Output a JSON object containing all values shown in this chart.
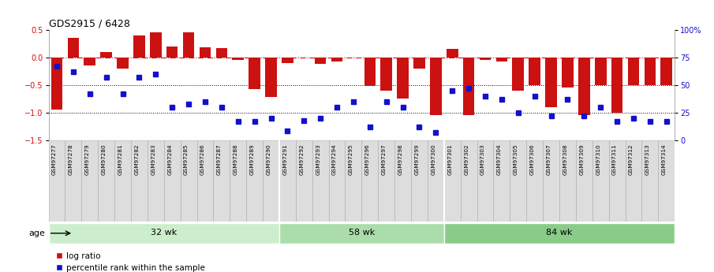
{
  "title": "GDS2915 / 6428",
  "samples": [
    "GSM97277",
    "GSM97278",
    "GSM97279",
    "GSM97280",
    "GSM97281",
    "GSM97282",
    "GSM97283",
    "GSM97284",
    "GSM97285",
    "GSM97286",
    "GSM97287",
    "GSM97288",
    "GSM97289",
    "GSM97290",
    "GSM97291",
    "GSM97292",
    "GSM97293",
    "GSM97294",
    "GSM97295",
    "GSM97296",
    "GSM97297",
    "GSM97298",
    "GSM97299",
    "GSM97300",
    "GSM97301",
    "GSM97302",
    "GSM97303",
    "GSM97304",
    "GSM97305",
    "GSM97306",
    "GSM97307",
    "GSM97308",
    "GSM97309",
    "GSM97310",
    "GSM97311",
    "GSM97312",
    "GSM97313",
    "GSM97314"
  ],
  "log_ratio": [
    -0.95,
    0.35,
    -0.15,
    0.1,
    -0.2,
    0.4,
    0.45,
    0.2,
    0.45,
    0.18,
    0.17,
    -0.05,
    -0.58,
    -0.72,
    -0.1,
    0.0,
    -0.12,
    -0.07,
    0.0,
    -0.52,
    -0.6,
    -0.75,
    -0.2,
    -1.05,
    0.15,
    -1.05,
    -0.05,
    -0.08,
    -0.6,
    -0.5,
    -0.9,
    -0.55,
    -1.05,
    -0.5,
    -1.0,
    -0.5,
    -0.5,
    -0.5
  ],
  "percentile": [
    67,
    62,
    42,
    57,
    42,
    57,
    60,
    30,
    33,
    35,
    30,
    17,
    17,
    20,
    8,
    18,
    20,
    30,
    35,
    12,
    35,
    30,
    12,
    7,
    45,
    47,
    40,
    37,
    25,
    40,
    22,
    37,
    22,
    30,
    17,
    20,
    17,
    17
  ],
  "groups": [
    {
      "label": "32 wk",
      "start": 0,
      "end": 14
    },
    {
      "label": "58 wk",
      "start": 14,
      "end": 24
    },
    {
      "label": "84 wk",
      "start": 24,
      "end": 38
    }
  ],
  "bar_color": "#cc1111",
  "dot_color": "#1111cc",
  "ylim": [
    -1.5,
    0.5
  ],
  "y2lim": [
    0,
    100
  ],
  "yticks": [
    -1.5,
    -1.0,
    -0.5,
    0.0,
    0.5
  ],
  "y2ticks": [
    0,
    25,
    50,
    75,
    100
  ],
  "y2ticklabels": [
    "0",
    "25",
    "50",
    "75",
    "100%"
  ],
  "hlines": [
    -0.5,
    -1.0
  ],
  "dashed_hline": 0.0,
  "legend_log_ratio": "log ratio",
  "legend_percentile": "percentile rank within the sample",
  "age_label": "age",
  "group_colors": [
    "#cceecc",
    "#aaddaa",
    "#88cc88"
  ],
  "label_box_color": "#dddddd",
  "label_box_edge": "#aaaaaa",
  "background_color": "#ffffff"
}
